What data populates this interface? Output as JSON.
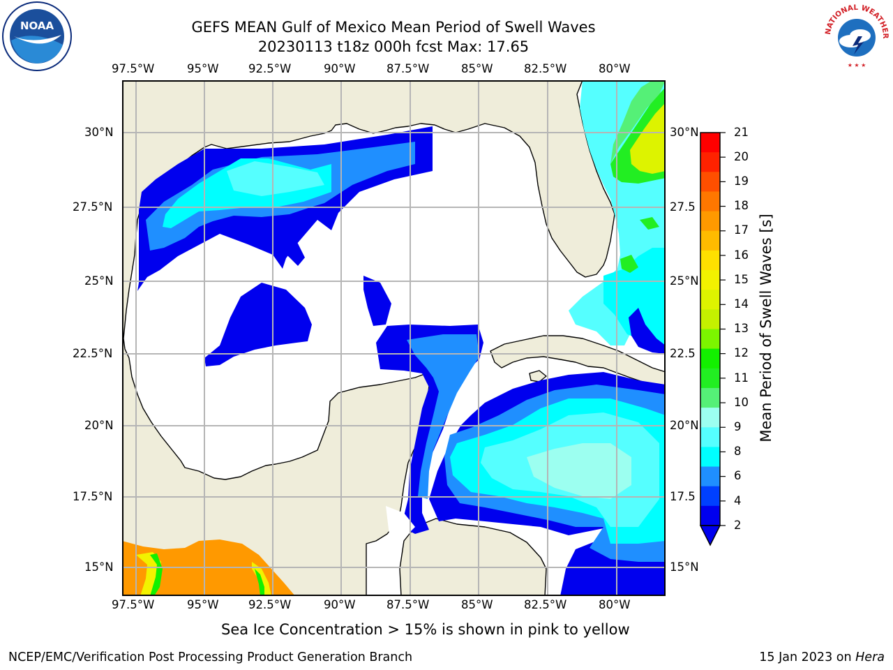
{
  "header": {
    "title_line1": "GEFS MEAN Gulf of Mexico Mean Period of Swell Waves",
    "title_line2": "20230113 t18z 000h fcst   Max: 17.65"
  },
  "axes": {
    "longitude_labels": [
      "97.5°W",
      "95°W",
      "92.5°W",
      "90°W",
      "87.5°W",
      "85°W",
      "82.5°W",
      "80°W"
    ],
    "latitude_labels_left": [
      "30°N",
      "27.5°N",
      "25°N",
      "22.5°N",
      "20°N",
      "17.5°N",
      "15°N"
    ],
    "latitude_labels_right": [
      "30°N",
      "27.5",
      "25°N",
      "22.5",
      "20°N",
      "17.5",
      "15°N"
    ]
  },
  "colorbar": {
    "label": "Mean Period of Swell Waves [s]",
    "tick_labels": [
      "21",
      "20",
      "19",
      "18",
      "17",
      "16",
      "15",
      "14",
      "13",
      "12",
      "11",
      "10",
      "9",
      "8",
      "6",
      "4",
      "2"
    ],
    "colors": [
      "#ff0000",
      "#ff2200",
      "#ff4f00",
      "#ff7700",
      "#ff9900",
      "#ffbb00",
      "#ffe000",
      "#f2f200",
      "#ddf300",
      "#c4f000",
      "#7cf500",
      "#13f000",
      "#22ee22",
      "#55f077",
      "#9cfff0",
      "#55ffff",
      "#00ffff",
      "#1f8fff",
      "#0040ff",
      "#0000ee"
    ]
  },
  "map": {
    "land_color": "#efedda",
    "ocean_color": "#ffffff",
    "grid_color": "#b5b5b5"
  },
  "logos": {
    "left_text": "NOAA",
    "right_text": "NATIONAL WEATHER SERVICE"
  },
  "footer": {
    "note": "Sea Ice Concentration > 15% is shown in pink to yellow",
    "left": "NCEP/EMC/Verification Post Processing Product Generation Branch",
    "date": "15 Jan 2023 on ",
    "machine": "Hera"
  }
}
